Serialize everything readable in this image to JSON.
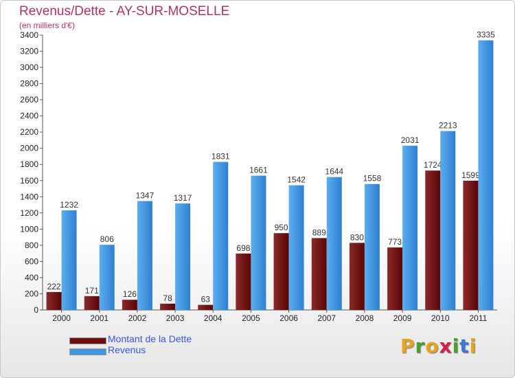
{
  "header": {
    "title": "Revenus/Dette - AY-SUR-MOSELLE",
    "subtitle": "(en milliers d'€)"
  },
  "legend": {
    "items": [
      {
        "label": "Montant de la Dette",
        "color": "#6e0f0f"
      },
      {
        "label": "Revenus",
        "color": "#3f97e0"
      }
    ]
  },
  "logo": {
    "letters": [
      {
        "ch": "P",
        "color": "#e8a41c"
      },
      {
        "ch": "r",
        "color": "#4aa02c"
      },
      {
        "ch": "o",
        "color": "#e8a41c"
      },
      {
        "ch": "x",
        "color": "#d0214a"
      },
      {
        "ch": "i",
        "color": "#4aa02c"
      },
      {
        "ch": "t",
        "color": "#3a7ad0"
      },
      {
        "ch": "i",
        "color": "#e8a41c"
      }
    ]
  },
  "chart_data": {
    "type": "bar",
    "title": "Revenus/Dette - AY-SUR-MOSELLE",
    "subtitle": "(en milliers d'€)",
    "categories": [
      "2000",
      "2001",
      "2002",
      "2003",
      "2004",
      "2005",
      "2006",
      "2007",
      "2008",
      "2009",
      "2010",
      "2011"
    ],
    "series": [
      {
        "name": "Montant de la Dette",
        "color": "#6e0f0f",
        "values": [
          222,
          171,
          126,
          78,
          63,
          698,
          950,
          889,
          830,
          773,
          1724,
          1599
        ]
      },
      {
        "name": "Revenus",
        "color": "#3f97e0",
        "values": [
          1232,
          806,
          1347,
          1317,
          1831,
          1661,
          1542,
          1644,
          1558,
          2031,
          2213,
          3335
        ]
      }
    ],
    "ylim": [
      0,
      3400
    ],
    "yticks": [
      0,
      200,
      400,
      600,
      800,
      1000,
      1200,
      1400,
      1600,
      1800,
      2000,
      2200,
      2400,
      2600,
      2800,
      3000,
      3200,
      3400
    ],
    "grid": false,
    "legend": "bottom-left"
  }
}
